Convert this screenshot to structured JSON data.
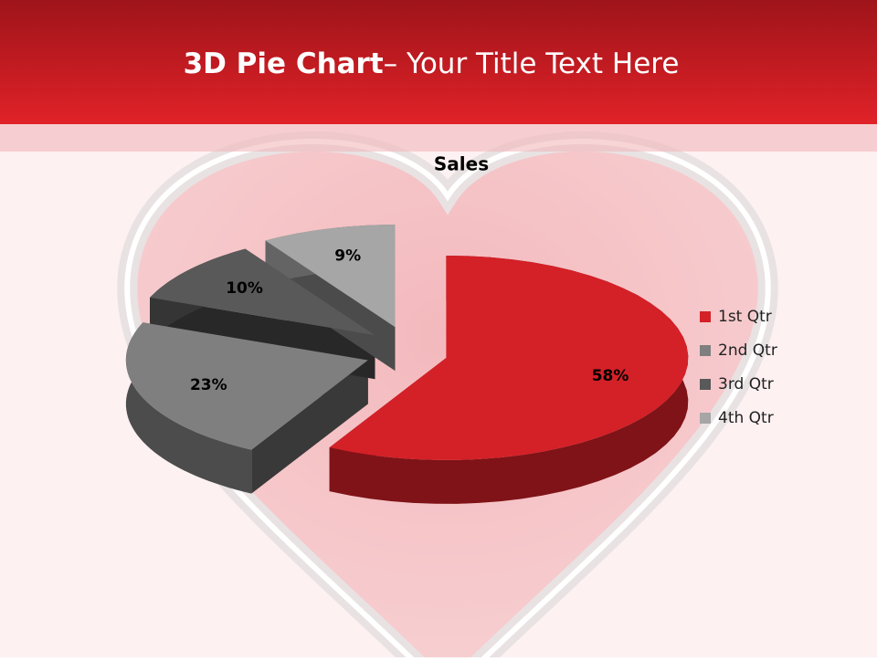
{
  "slide": {
    "title_bold": "3D Pie Chart",
    "title_rest": "– Your Title Text Here"
  },
  "chart_data": {
    "type": "pie",
    "title": "Sales",
    "categories": [
      "1st Qtr",
      "2nd Qtr",
      "3rd Qtr",
      "4th Qtr"
    ],
    "values": [
      58,
      23,
      10,
      9
    ],
    "value_labels": [
      "58%",
      "23%",
      "10%",
      "9%"
    ],
    "colors": [
      "#d42027",
      "#7f7f7f",
      "#595959",
      "#a6a6a6"
    ],
    "legend": "right"
  }
}
